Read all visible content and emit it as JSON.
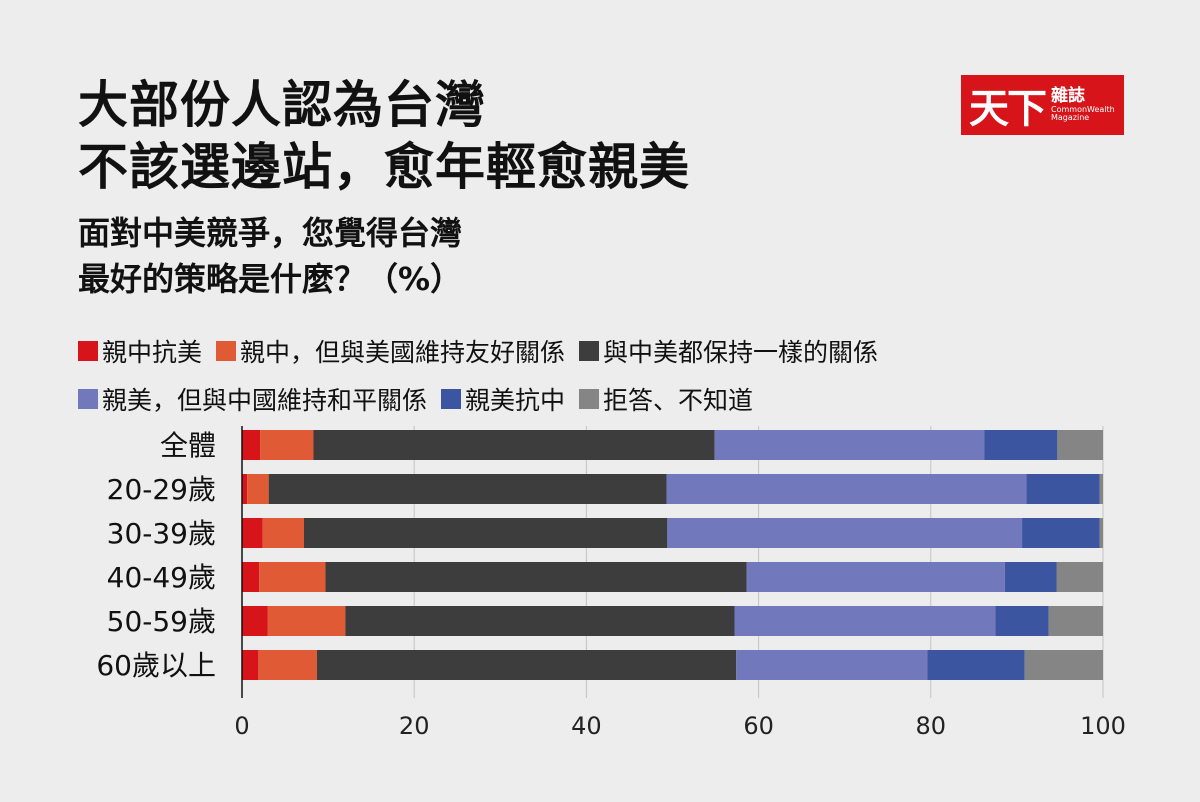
{
  "title_lines": [
    "大部份人認為台灣",
    "不該選邊站，愈年輕愈親美"
  ],
  "subtitle_lines": [
    "面對中美競爭，您覺得台灣",
    "最好的策略是什麼？（%）"
  ],
  "logo": {
    "main": "天下",
    "zh": "雜誌",
    "en_line1": "CommonWealth",
    "en_line2": "Magazine"
  },
  "colors": {
    "background": "#ededed",
    "pro_us_anti_china": "#3c55a0",
    "pro_china_anti_us": "#d7141a",
    "pro_china_friendly_us": "#e05a35",
    "equal": "#3d3d3d",
    "pro_us_peace_china": "#7178bb",
    "no_answer": "#858585",
    "logo": "#d7141a"
  },
  "chart_data": {
    "type": "bar",
    "orientation": "horizontal",
    "stacked": true,
    "title": "面對中美競爭，您覺得台灣最好的策略是什麼？（%）",
    "categories": [
      "全體",
      "20-29歲",
      "30-39歲",
      "40-49歲",
      "50-59歲",
      "60歲以上"
    ],
    "xlim": [
      0,
      100
    ],
    "xticks": [
      "0",
      "20",
      "40",
      "60",
      "80",
      "100"
    ],
    "grid": true,
    "legend_position": "top",
    "series": [
      {
        "name": "親中抗美",
        "color": "#d7141a",
        "values": [
          2.1,
          0.6,
          2.4,
          2.0,
          3.0,
          1.9
        ]
      },
      {
        "name": "親中，但與美國維持友好關係",
        "color": "#e05a35",
        "values": [
          6.2,
          2.5,
          4.8,
          7.7,
          9.0,
          6.8
        ]
      },
      {
        "name": "與中美都保持一樣的關係",
        "color": "#3d3d3d",
        "values": [
          46.6,
          46.2,
          42.2,
          48.9,
          45.2,
          48.7
        ]
      },
      {
        "name": "親美，但與中國維持和平關係",
        "color": "#7178bb",
        "values": [
          31.3,
          41.8,
          41.2,
          30.0,
          30.3,
          22.2
        ]
      },
      {
        "name": "親美抗中",
        "color": "#3c55a0",
        "values": [
          8.5,
          8.5,
          9.0,
          6.0,
          6.2,
          11.3
        ]
      },
      {
        "name": "拒答、不知道",
        "color": "#858585",
        "values": [
          5.3,
          0.4,
          0.4,
          5.4,
          6.3,
          9.1
        ]
      }
    ]
  }
}
